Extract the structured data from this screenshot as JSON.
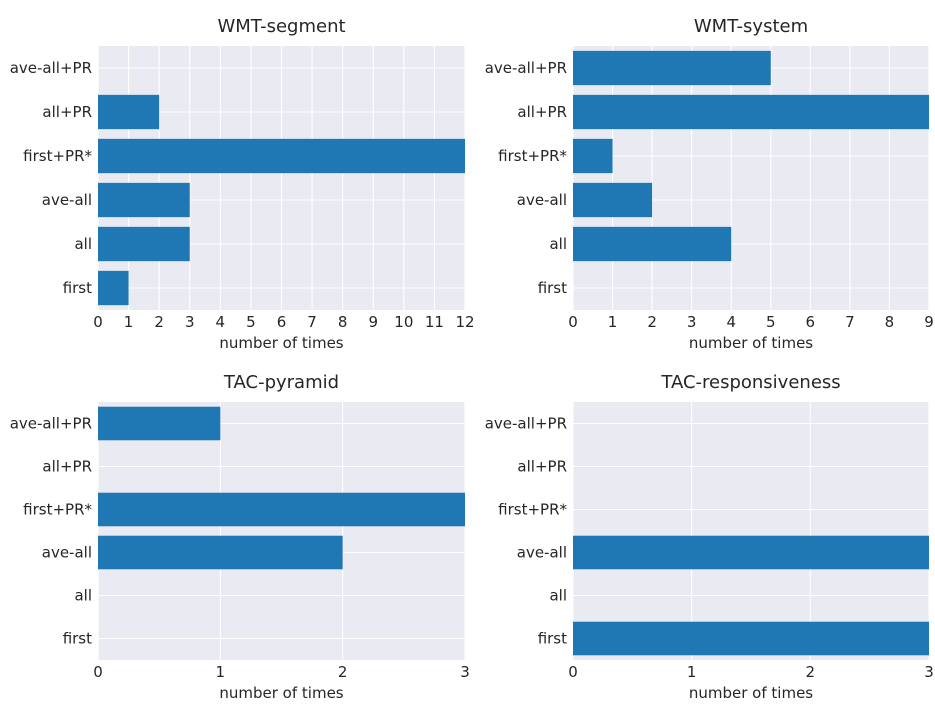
{
  "chart_data": [
    {
      "type": "bar",
      "orientation": "horizontal",
      "title": "WMT-segment",
      "xlabel": "number of times",
      "ylabel": "",
      "categories": [
        "ave-all+PR",
        "all+PR",
        "first+PR*",
        "ave-all",
        "all",
        "first"
      ],
      "values": [
        0,
        2,
        12,
        3,
        3,
        1
      ],
      "xlim": [
        0,
        12
      ],
      "xticks": [
        0,
        1,
        2,
        3,
        4,
        5,
        6,
        7,
        8,
        9,
        10,
        11,
        12
      ],
      "grid": true,
      "bar_color": "#1f77b4"
    },
    {
      "type": "bar",
      "orientation": "horizontal",
      "title": "WMT-system",
      "xlabel": "number of times",
      "ylabel": "",
      "categories": [
        "ave-all+PR",
        "all+PR",
        "first+PR*",
        "ave-all",
        "all",
        "first"
      ],
      "values": [
        5,
        9,
        1,
        2,
        4,
        0
      ],
      "xlim": [
        0,
        9
      ],
      "xticks": [
        0,
        1,
        2,
        3,
        4,
        5,
        6,
        7,
        8,
        9
      ],
      "grid": true,
      "bar_color": "#1f77b4"
    },
    {
      "type": "bar",
      "orientation": "horizontal",
      "title": "TAC-pyramid",
      "xlabel": "number of times",
      "ylabel": "",
      "categories": [
        "ave-all+PR",
        "all+PR",
        "first+PR*",
        "ave-all",
        "all",
        "first"
      ],
      "values": [
        1,
        0,
        3,
        2,
        0,
        0
      ],
      "xlim": [
        0,
        3
      ],
      "xticks": [
        0,
        1,
        2,
        3
      ],
      "grid": true,
      "bar_color": "#1f77b4"
    },
    {
      "type": "bar",
      "orientation": "horizontal",
      "title": "TAC-responsiveness",
      "xlabel": "number of times",
      "ylabel": "",
      "categories": [
        "ave-all+PR",
        "all+PR",
        "first+PR*",
        "ave-all",
        "all",
        "first"
      ],
      "values": [
        0,
        0,
        0,
        3,
        0,
        3
      ],
      "xlim": [
        0,
        3
      ],
      "xticks": [
        0,
        1,
        2,
        3
      ],
      "grid": true,
      "bar_color": "#1f77b4"
    }
  ],
  "colors": {
    "plot_background": "#eaeaf2",
    "grid": "#ffffff",
    "bar": "#1f77b4",
    "text": "#262626"
  }
}
